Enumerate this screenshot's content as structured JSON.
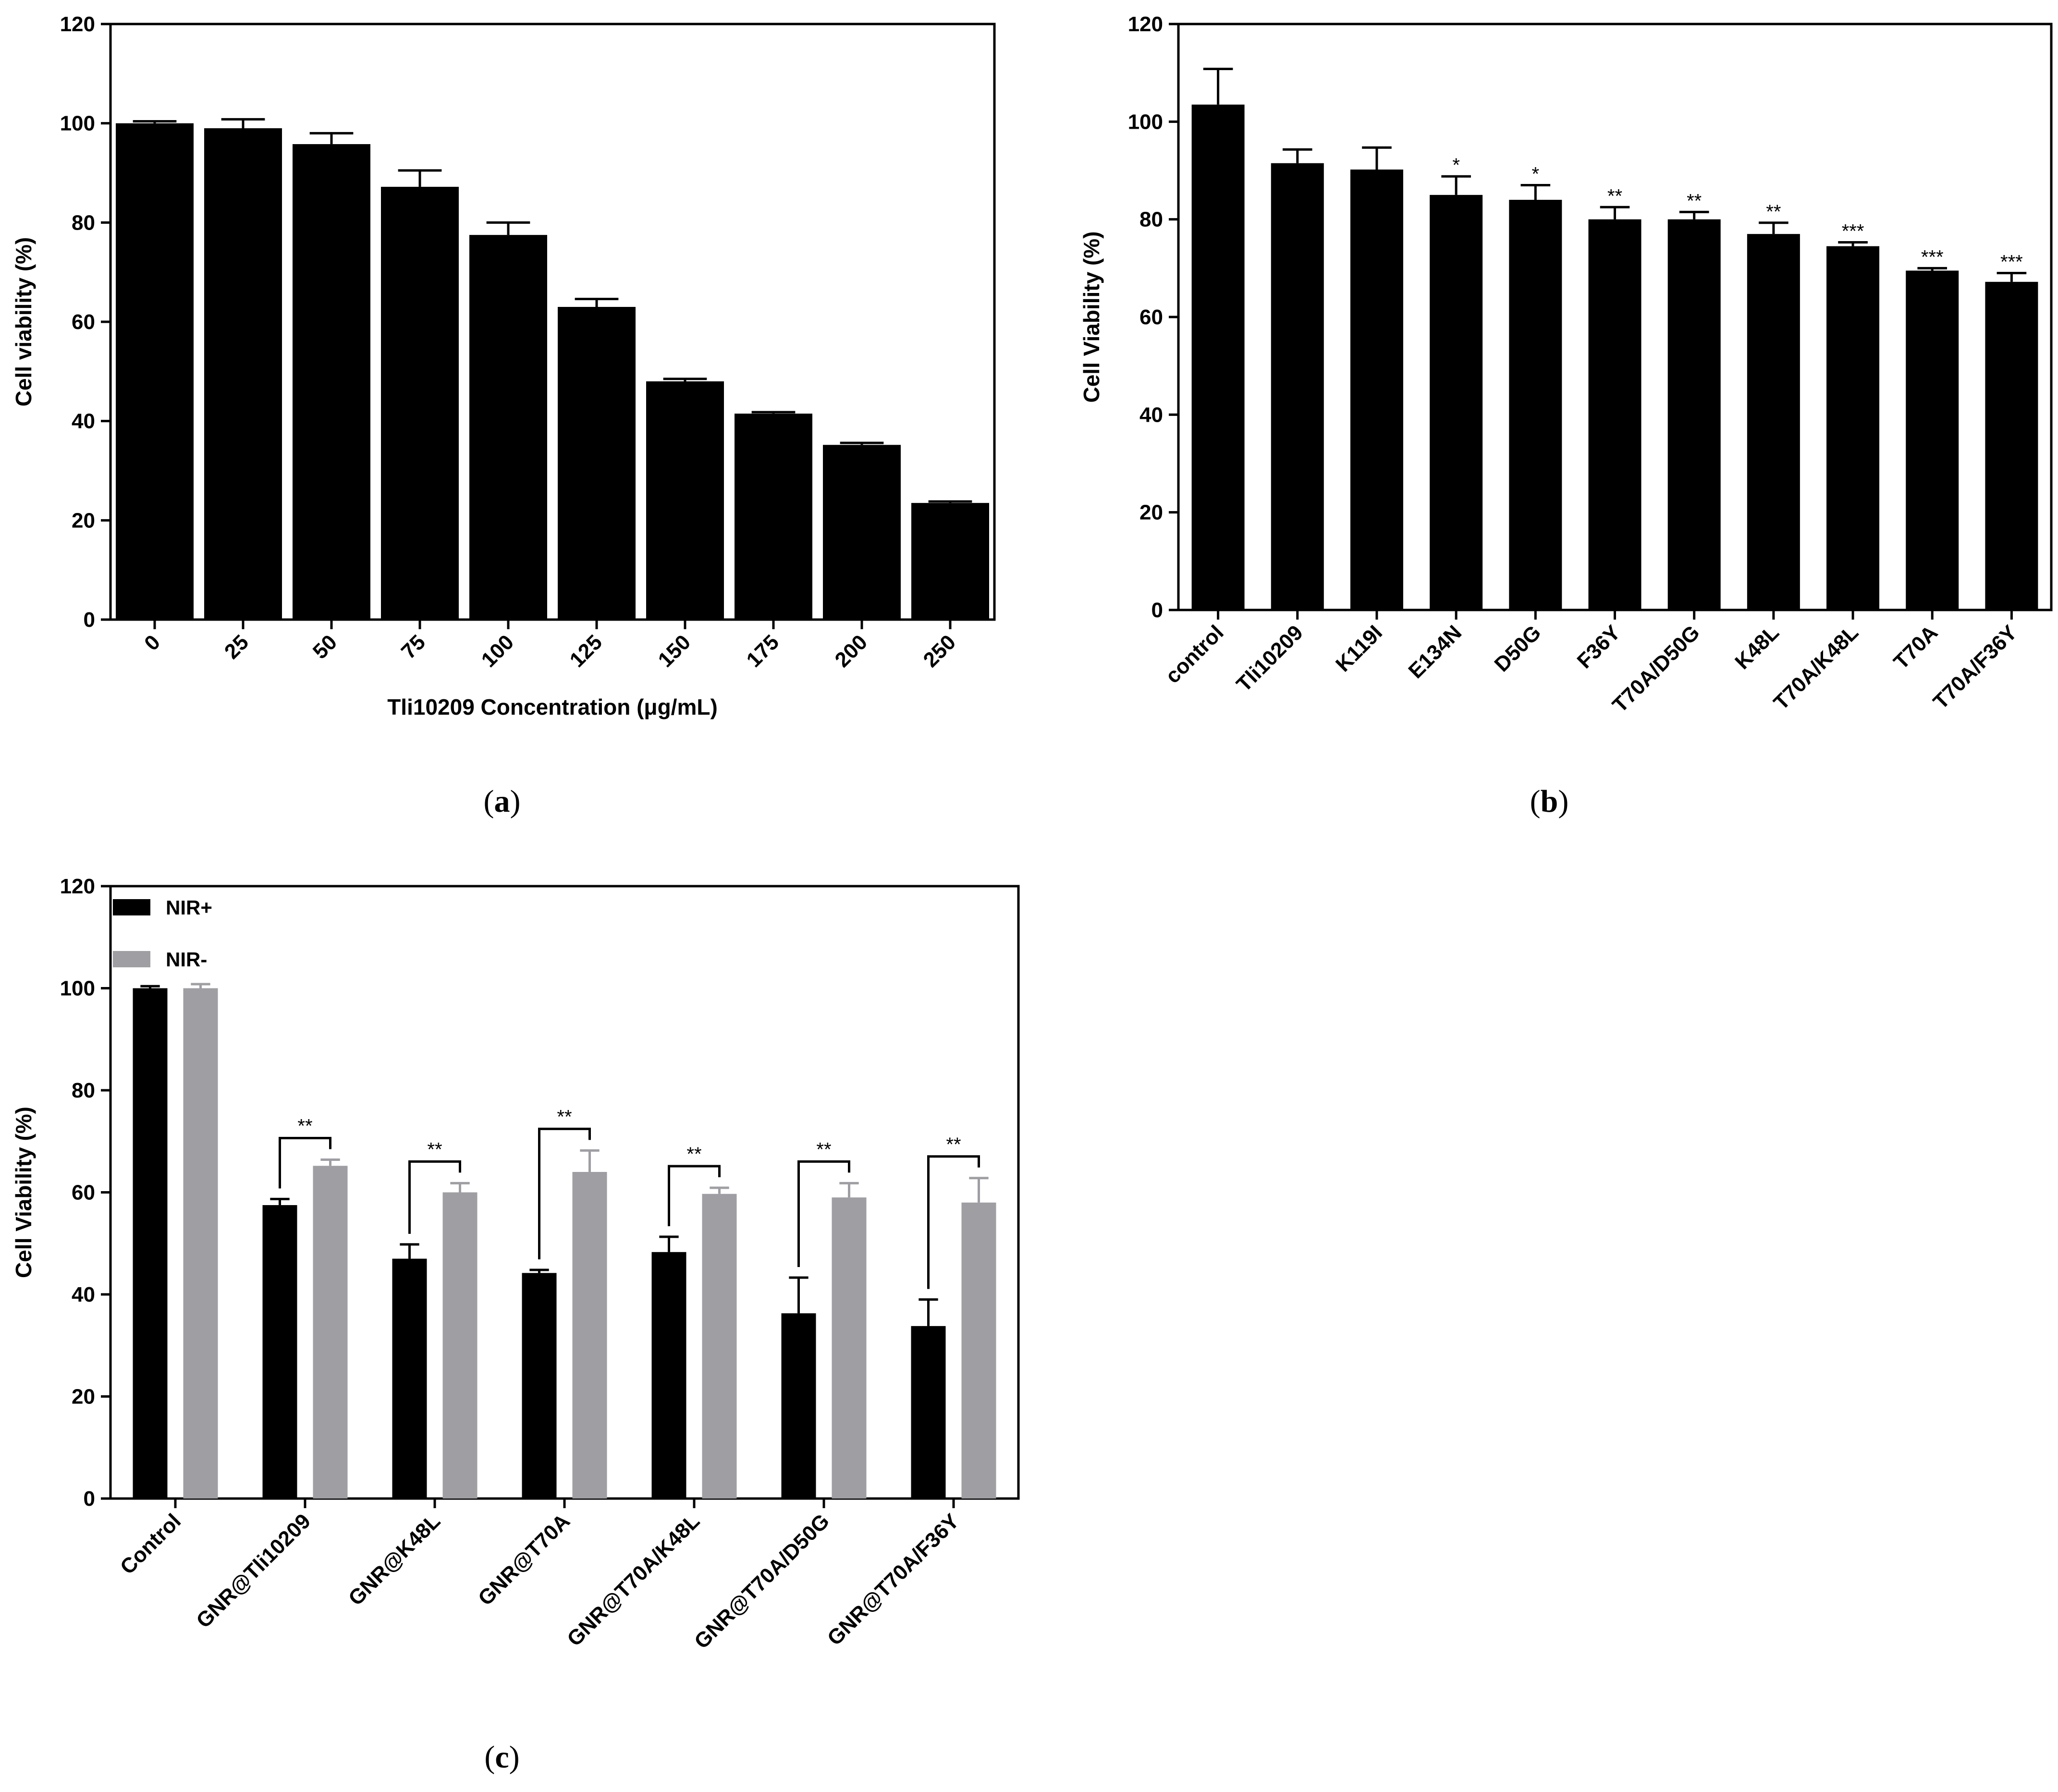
{
  "chart_data": [
    {
      "id": "a",
      "type": "bar",
      "panel_label": "(a)",
      "panel_letter": "a",
      "xlabel": "Tli10209 Concentration (μg/mL)",
      "ylabel": "Cell viability (%)",
      "ylim": [
        0,
        120
      ],
      "yticks": [
        "0",
        "20",
        "40",
        "60",
        "80",
        "100",
        "120"
      ],
      "categories": [
        "0",
        "25",
        "50",
        "75",
        "100",
        "125",
        "150",
        "175",
        "200",
        "250"
      ],
      "series": [
        {
          "name": "Cell viability",
          "color": "#000000",
          "values": [
            100,
            99,
            95.8,
            87.2,
            77.5,
            63,
            48,
            41.5,
            35.2,
            23.5
          ],
          "errors": [
            0.4,
            1.8,
            2.2,
            3.3,
            2.5,
            1.6,
            0.5,
            0.3,
            0.4,
            0.3
          ]
        }
      ]
    },
    {
      "id": "b",
      "type": "bar",
      "panel_label": "(b)",
      "panel_letter": "b",
      "xlabel": "",
      "ylabel": "Cell Viability (%)",
      "ylim": [
        0,
        120
      ],
      "yticks": [
        "0",
        "20",
        "40",
        "60",
        "80",
        "100",
        "120"
      ],
      "categories": [
        "control",
        "Tli10209",
        "K119I",
        "E134N",
        "D50G",
        "F36Y",
        "T70A/D50G",
        "K48L",
        "T70A/K48L",
        "T70A",
        "T70A/F36Y"
      ],
      "series": [
        {
          "name": "Cell Viability",
          "color": "#000000",
          "values": [
            103.5,
            91.5,
            90.2,
            85,
            84,
            80,
            80,
            77,
            74.5,
            69.5,
            67.2
          ],
          "errors": [
            7.3,
            2.8,
            4.5,
            3.8,
            3,
            2.5,
            1.5,
            2.3,
            0.8,
            0.5,
            1.8
          ],
          "annotations": [
            "",
            "",
            "",
            "*",
            "*",
            "**",
            "**",
            "**",
            "***",
            "***",
            "***"
          ]
        }
      ]
    },
    {
      "id": "c",
      "type": "bar",
      "panel_label": "(c)",
      "panel_letter": "c",
      "xlabel": "",
      "ylabel": "Cell Viability (%)",
      "ylim": [
        0,
        120
      ],
      "yticks": [
        "0",
        "20",
        "40",
        "60",
        "80",
        "100",
        "120"
      ],
      "categories": [
        "Control",
        "GNR@Tli10209",
        "GNR@K48L",
        "GNR@T70A",
        "GNR@T70A/K48L",
        "GNR@T70A/D50G",
        "GNR@T70A/F36Y"
      ],
      "legend": [
        "NIR+",
        "NIR-"
      ],
      "legend_position": "top-left",
      "series": [
        {
          "name": "NIR+",
          "color": "#000000",
          "values": [
            100,
            57.5,
            47,
            44.2,
            48.3,
            36.3,
            33.8
          ],
          "errors": [
            0.4,
            1.2,
            2.8,
            0.6,
            3,
            7,
            5.2
          ]
        },
        {
          "name": "NIR-",
          "color": "#9e9ea3",
          "values": [
            100,
            65.2,
            60,
            64,
            59.7,
            59,
            58
          ],
          "errors": [
            0.8,
            1.2,
            1.8,
            4.2,
            1.2,
            2.8,
            4.8
          ]
        }
      ],
      "significance": [
        "",
        "**",
        "**",
        "**",
        "**",
        "**",
        "**"
      ]
    }
  ]
}
